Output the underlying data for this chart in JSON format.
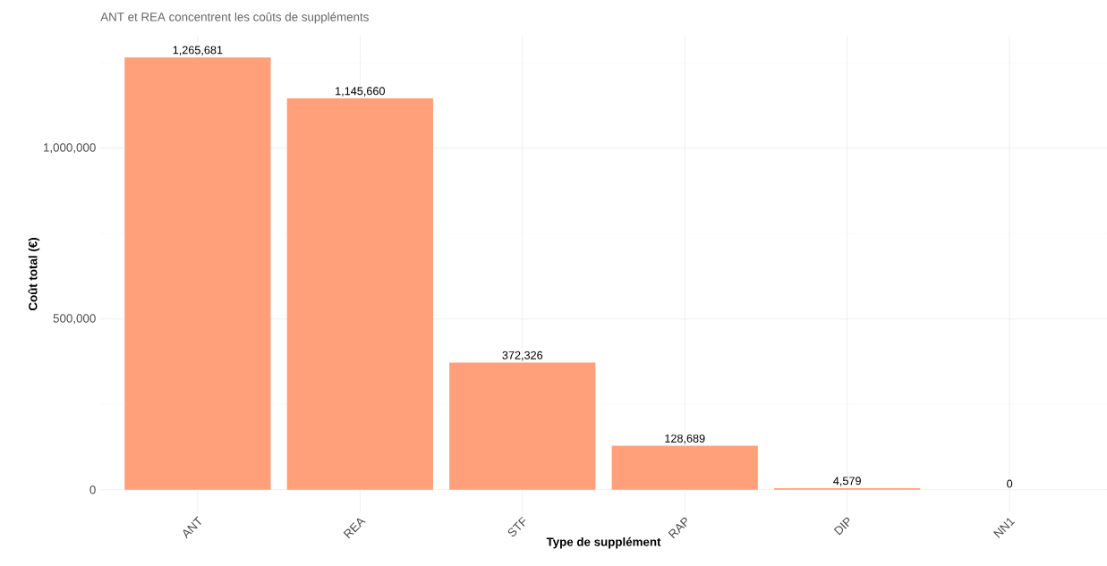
{
  "chart_data": {
    "type": "bar",
    "title": "ANT et REA concentrent les coûts de suppléments",
    "xlabel": "Type de supplément",
    "ylabel": "Coût total (€)",
    "categories": [
      "ANT",
      "REA",
      "STF",
      "RAP",
      "DIP",
      "NN1"
    ],
    "values": [
      1265681,
      1145660,
      372326,
      128689,
      4579,
      0
    ],
    "value_labels": [
      "1,265,681",
      "1,145,660",
      "372,326",
      "128,689",
      "4,579",
      "0"
    ],
    "color": "#ffa07a",
    "ylim": [
      -66000,
      1329000
    ],
    "yticks": [
      0,
      {
        "value": 500000,
        "label": "500,000"
      },
      {
        "value": 1000000,
        "label": "1,000,000"
      }
    ],
    "grid": true
  }
}
